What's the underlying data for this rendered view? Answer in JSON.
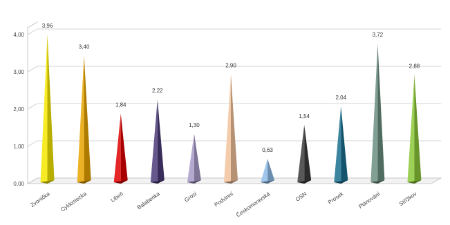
{
  "chart_data": {
    "type": "bar",
    "shape": "pyramid",
    "categories": [
      "Zvonička",
      "Cyklostezka",
      "Libeň",
      "Balabenka",
      "Grosi",
      "Podvinní",
      "Českomoravská",
      "OSN",
      "Prosek",
      "Plánování",
      "Střížkov"
    ],
    "values": [
      3.96,
      3.4,
      1.84,
      2.22,
      1.3,
      2.9,
      0.63,
      1.54,
      2.04,
      3.72,
      2.88
    ],
    "value_labels": [
      "3,96",
      "3,40",
      "1,84",
      "2,22",
      "1,30",
      "2,90",
      "0,63",
      "1,54",
      "2,04",
      "3,72",
      "2,88"
    ],
    "ylim": [
      0,
      4
    ],
    "yticks": [
      "0,00",
      "1,00",
      "2,00",
      "3,00",
      "4,00"
    ],
    "grid": true,
    "colors": [
      "#f5e800",
      "#e8a400",
      "#e00000",
      "#4b3b78",
      "#a89ac8",
      "#f2c39c",
      "#8fbde8",
      "#3b3b3b",
      "#1a7090",
      "#6b8f80",
      "#8cc838"
    ],
    "title": "",
    "xlabel": "",
    "ylabel": ""
  }
}
